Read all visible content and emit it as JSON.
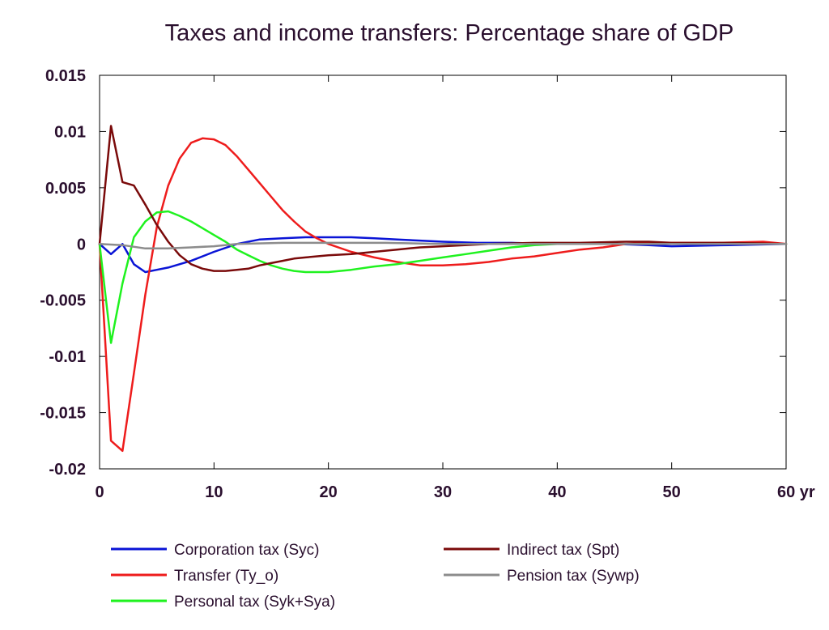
{
  "chart_data": {
    "type": "line",
    "title": "Taxes and income transfers: Percentage share of GDP",
    "xlim": [
      0,
      60
    ],
    "ylim": [
      -0.02,
      0.015
    ],
    "x_ticks": [
      {
        "value": 0,
        "label": "0"
      },
      {
        "value": 10,
        "label": "10"
      },
      {
        "value": 20,
        "label": "20"
      },
      {
        "value": 30,
        "label": "30"
      },
      {
        "value": 40,
        "label": "40"
      },
      {
        "value": 50,
        "label": "50"
      },
      {
        "value": 60,
        "label": "60 yr"
      }
    ],
    "y_ticks": [
      {
        "value": 0.015,
        "label": "0.015"
      },
      {
        "value": 0.01,
        "label": "0.01"
      },
      {
        "value": 0.005,
        "label": "0.005"
      },
      {
        "value": 0,
        "label": "0"
      },
      {
        "value": -0.005,
        "label": "-0.005"
      },
      {
        "value": -0.01,
        "label": "-0.01"
      },
      {
        "value": -0.015,
        "label": "-0.015"
      },
      {
        "value": -0.02,
        "label": "-0.02"
      }
    ],
    "grid": false,
    "legend_position": "bottom",
    "series": [
      {
        "name": "Corporation tax (Syc)",
        "color": "#0a14d6",
        "points": [
          [
            0,
            0
          ],
          [
            1,
            -0.0009
          ],
          [
            2,
            0
          ],
          [
            3,
            -0.0018
          ],
          [
            4,
            -0.0025
          ],
          [
            5,
            -0.0023
          ],
          [
            6,
            -0.0021
          ],
          [
            8,
            -0.0015
          ],
          [
            10,
            -0.0007
          ],
          [
            12,
            0
          ],
          [
            14,
            0.0004
          ],
          [
            16,
            0.0005
          ],
          [
            18,
            0.0006
          ],
          [
            20,
            0.0006
          ],
          [
            22,
            0.0006
          ],
          [
            24,
            0.0005
          ],
          [
            26,
            0.0004
          ],
          [
            28,
            0.0003
          ],
          [
            30,
            0.0002
          ],
          [
            33,
            0.0001
          ],
          [
            36,
            0.0001
          ],
          [
            40,
            0
          ],
          [
            45,
            0
          ],
          [
            48,
            -0.0001
          ],
          [
            50,
            -0.0002
          ],
          [
            55,
            -0.0001
          ],
          [
            60,
            0
          ]
        ]
      },
      {
        "name": "Transfer (Ty_o)",
        "color": "#ee1c1c",
        "points": [
          [
            0,
            0
          ],
          [
            1,
            -0.0175
          ],
          [
            2,
            -0.0184
          ],
          [
            3,
            -0.0115
          ],
          [
            4,
            -0.0045
          ],
          [
            5,
            0.0015
          ],
          [
            6,
            0.0052
          ],
          [
            7,
            0.0076
          ],
          [
            8,
            0.009
          ],
          [
            9,
            0.0094
          ],
          [
            10,
            0.0093
          ],
          [
            11,
            0.0088
          ],
          [
            12,
            0.0078
          ],
          [
            13,
            0.0066
          ],
          [
            14,
            0.0054
          ],
          [
            15,
            0.0042
          ],
          [
            16,
            0.003
          ],
          [
            17,
            0.002
          ],
          [
            18,
            0.0011
          ],
          [
            19,
            0.0005
          ],
          [
            20,
            0
          ],
          [
            22,
            -0.0007
          ],
          [
            24,
            -0.0012
          ],
          [
            26,
            -0.0016
          ],
          [
            28,
            -0.0019
          ],
          [
            30,
            -0.0019
          ],
          [
            32,
            -0.0018
          ],
          [
            34,
            -0.0016
          ],
          [
            36,
            -0.0013
          ],
          [
            38,
            -0.0011
          ],
          [
            40,
            -0.0008
          ],
          [
            42,
            -0.0005
          ],
          [
            44,
            -0.0003
          ],
          [
            46,
            0
          ],
          [
            48,
            0.0001
          ],
          [
            50,
            0.0001
          ],
          [
            54,
            0.0001
          ],
          [
            58,
            0.0002
          ],
          [
            60,
            0
          ]
        ]
      },
      {
        "name": "Personal tax (Syk+Sya)",
        "color": "#1ff21f",
        "points": [
          [
            0,
            0
          ],
          [
            1,
            -0.0088
          ],
          [
            2,
            -0.0035
          ],
          [
            3,
            0.0006
          ],
          [
            4,
            0.002
          ],
          [
            5,
            0.0028
          ],
          [
            6,
            0.0029
          ],
          [
            7,
            0.0025
          ],
          [
            8,
            0.002
          ],
          [
            9,
            0.0014
          ],
          [
            10,
            0.0008
          ],
          [
            11,
            0.0002
          ],
          [
            12,
            -0.0005
          ],
          [
            13,
            -0.001
          ],
          [
            14,
            -0.0015
          ],
          [
            15,
            -0.0019
          ],
          [
            16,
            -0.0022
          ],
          [
            17,
            -0.0024
          ],
          [
            18,
            -0.0025
          ],
          [
            20,
            -0.0025
          ],
          [
            22,
            -0.0023
          ],
          [
            24,
            -0.002
          ],
          [
            26,
            -0.0018
          ],
          [
            28,
            -0.0015
          ],
          [
            30,
            -0.0012
          ],
          [
            32,
            -0.0009
          ],
          [
            34,
            -0.0006
          ],
          [
            36,
            -0.0003
          ],
          [
            38,
            -0.0001
          ],
          [
            40,
            0
          ],
          [
            45,
            0
          ],
          [
            50,
            0
          ],
          [
            60,
            0
          ]
        ]
      },
      {
        "name": "Indirect tax (Spt)",
        "color": "#7a0a0a",
        "points": [
          [
            0,
            0
          ],
          [
            1,
            0.0105
          ],
          [
            2,
            0.0055
          ],
          [
            3,
            0.0052
          ],
          [
            4,
            0.0035
          ],
          [
            5,
            0.0017
          ],
          [
            6,
            0.0002
          ],
          [
            7,
            -0.001
          ],
          [
            8,
            -0.0018
          ],
          [
            9,
            -0.0022
          ],
          [
            10,
            -0.0024
          ],
          [
            11,
            -0.0024
          ],
          [
            12,
            -0.0023
          ],
          [
            13,
            -0.0022
          ],
          [
            14,
            -0.0019
          ],
          [
            15,
            -0.0017
          ],
          [
            16,
            -0.0015
          ],
          [
            17,
            -0.0013
          ],
          [
            18,
            -0.0012
          ],
          [
            20,
            -0.001
          ],
          [
            22,
            -0.0009
          ],
          [
            24,
            -0.0007
          ],
          [
            26,
            -0.0005
          ],
          [
            28,
            -0.0003
          ],
          [
            30,
            -0.0002
          ],
          [
            34,
            0
          ],
          [
            38,
            0.0001
          ],
          [
            42,
            0.0001
          ],
          [
            46,
            0.0002
          ],
          [
            48,
            0.0002
          ],
          [
            50,
            0.0001
          ],
          [
            55,
            0.0001
          ],
          [
            60,
            0
          ]
        ]
      },
      {
        "name": "Pension tax (Sywp)",
        "color": "#8c8c8c",
        "points": [
          [
            0,
            0
          ],
          [
            2,
            -0.0001
          ],
          [
            4,
            -0.0004
          ],
          [
            6,
            -0.0004
          ],
          [
            8,
            -0.0003
          ],
          [
            10,
            -0.0002
          ],
          [
            12,
            0
          ],
          [
            16,
            0.0001
          ],
          [
            20,
            0.0001
          ],
          [
            25,
            0.0001
          ],
          [
            30,
            0
          ],
          [
            40,
            0
          ],
          [
            50,
            0
          ],
          [
            60,
            0
          ]
        ]
      }
    ]
  }
}
